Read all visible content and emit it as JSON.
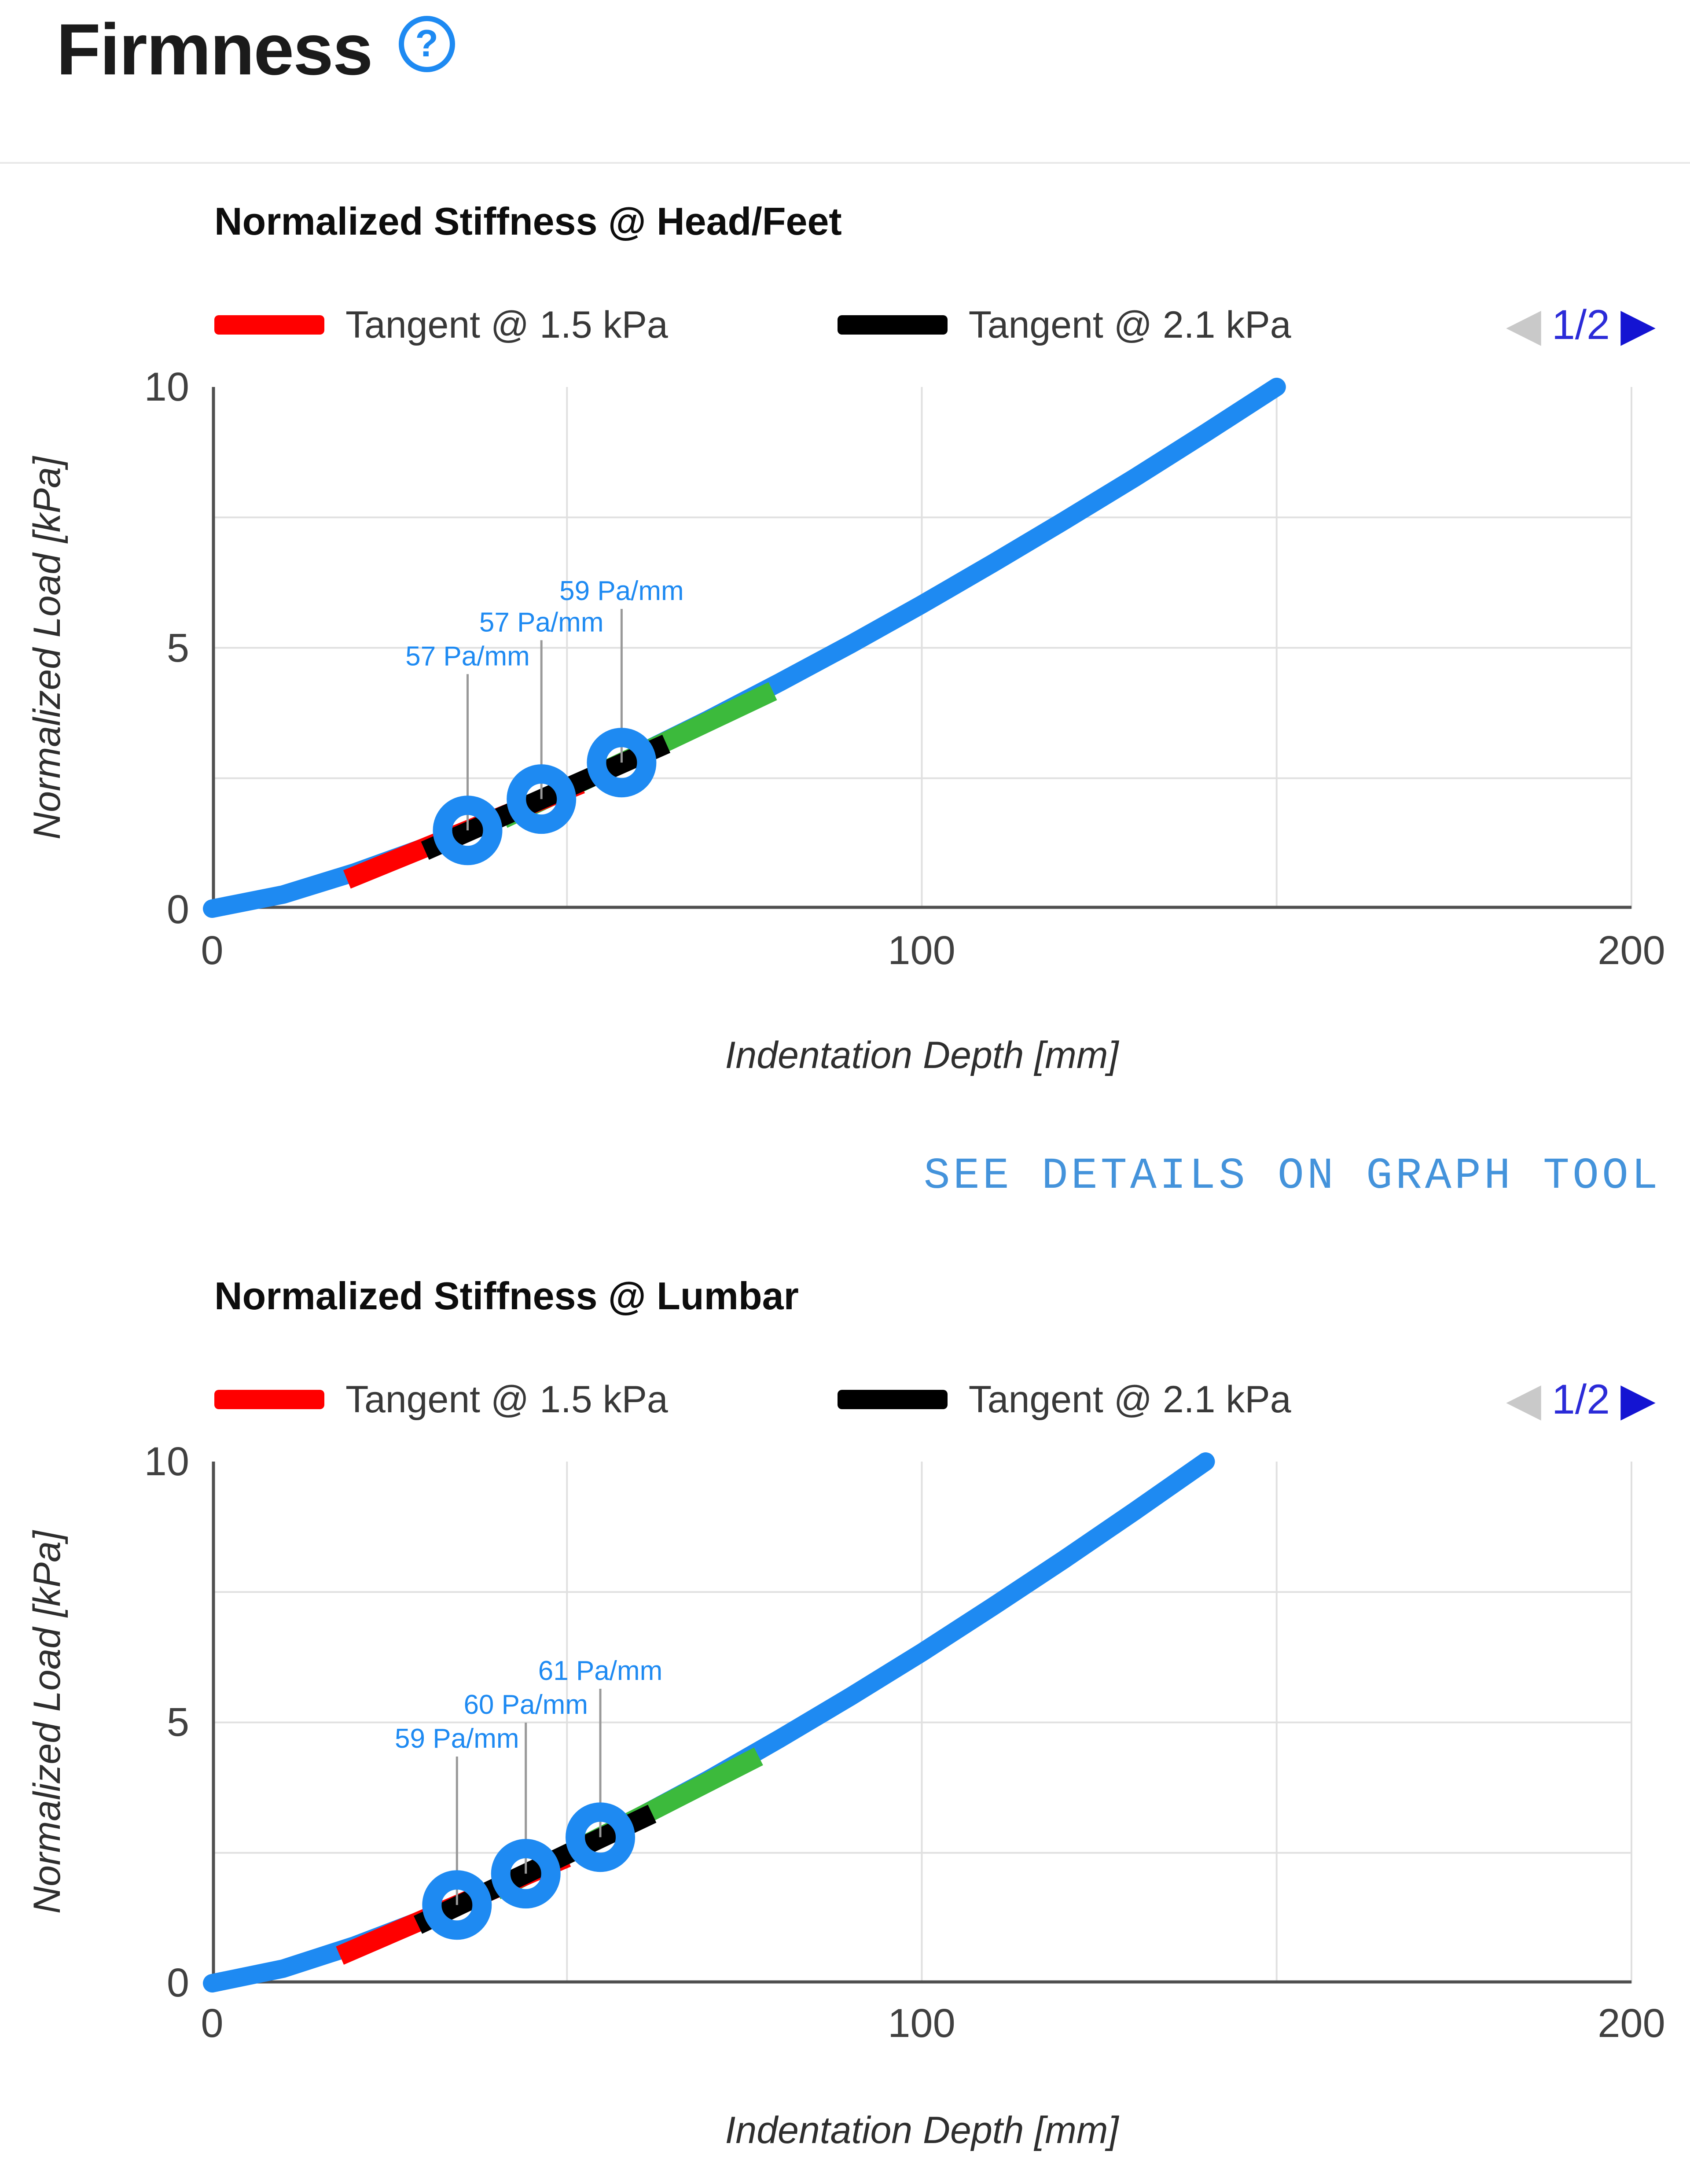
{
  "header": {
    "title": "Firmness",
    "help_icon_glyph": "?"
  },
  "see_details_link": {
    "label": "SEE DETAILS ON GRAPH TOOL"
  },
  "pager": {
    "label": "1/2",
    "prev_icon": "◀",
    "next_icon": "▶",
    "prev_enabled": false,
    "next_enabled": true,
    "prev_color": "#c9c9c9",
    "next_color": "#1414d2",
    "label_color": "#2b2bd8"
  },
  "colors": {
    "curve_blue": "#1e8af2",
    "annotation_blue": "#1e8af2",
    "tangent_red": "#ff0000",
    "tangent_black": "#000000",
    "tangent_green": "#3cba3c",
    "grid": "#e0e0e0",
    "axis": "#4f4f4f",
    "callout_gray": "#999999",
    "link_blue": "#4493db"
  },
  "chart_data": [
    {
      "type": "line",
      "title": "Normalized Stiffness @ Head/Feet",
      "xlabel": "Indentation Depth [mm]",
      "ylabel": "Normalized Load [kPa]",
      "xlim": [
        0,
        200
      ],
      "ylim": [
        0,
        10
      ],
      "xticks": [
        0,
        100,
        200
      ],
      "yticks": [
        0,
        5,
        10
      ],
      "x_gridlines": [
        50,
        100,
        150,
        200
      ],
      "y_gridlines": [
        2.5,
        5,
        7.5
      ],
      "legend": [
        {
          "label": "Tangent @ 1.5 kPa",
          "color": "#ff0000"
        },
        {
          "label": "Tangent @ 2.1 kPa",
          "color": "#000000"
        }
      ],
      "legend_page": "1/2",
      "curve": {
        "name": "normalized-load-vs-indentation-depth",
        "color": "#1e8af2",
        "points": [
          [
            0,
            0
          ],
          [
            10,
            0.27
          ],
          [
            20,
            0.69
          ],
          [
            30,
            1.18
          ],
          [
            36,
            1.5
          ],
          [
            40,
            1.73
          ],
          [
            46.4,
            2.1
          ],
          [
            50,
            2.32
          ],
          [
            57.7,
            2.8
          ],
          [
            60,
            2.96
          ],
          [
            70,
            3.63
          ],
          [
            80,
            4.34
          ],
          [
            90,
            5.07
          ],
          [
            100,
            5.83
          ],
          [
            110,
            6.62
          ],
          [
            120,
            7.43
          ],
          [
            130,
            8.26
          ],
          [
            140,
            9.12
          ],
          [
            150,
            10
          ]
        ]
      },
      "tangents": [
        {
          "name": "tangent-green",
          "color": "#3cba3c",
          "x1": 41,
          "y1": 1.72,
          "x2": 79,
          "y2": 4.17
        },
        {
          "name": "tangent-red",
          "label": "Tangent @ 1.5 kPa",
          "color": "#ff0000",
          "x1": 19,
          "y1": 0.56,
          "x2": 52,
          "y2": 2.39
        },
        {
          "name": "tangent-black",
          "label": "Tangent @ 2.1 kPa",
          "color": "#000000",
          "x1": 30,
          "y1": 1.11,
          "x2": 64,
          "y2": 3.16
        }
      ],
      "markers": [
        {
          "x": 36,
          "y": 1.5,
          "stiffness_label": "57 Pa/mm",
          "label_y": 4.85
        },
        {
          "x": 46.4,
          "y": 2.1,
          "stiffness_label": "57 Pa/mm",
          "label_y": 5.5
        },
        {
          "x": 57.7,
          "y": 2.8,
          "stiffness_label": "59 Pa/mm",
          "label_y": 6.1
        }
      ]
    },
    {
      "type": "line",
      "title": "Normalized Stiffness @ Lumbar",
      "xlabel": "Indentation Depth [mm]",
      "ylabel": "Normalized Load [kPa]",
      "xlim": [
        0,
        200
      ],
      "ylim": [
        0,
        10
      ],
      "xticks": [
        0,
        100,
        200
      ],
      "yticks": [
        0,
        5,
        10
      ],
      "x_gridlines": [
        50,
        100,
        150,
        200
      ],
      "y_gridlines": [
        2.5,
        5,
        7.5
      ],
      "legend": [
        {
          "label": "Tangent @ 1.5 kPa",
          "color": "#ff0000"
        },
        {
          "label": "Tangent @ 2.1 kPa",
          "color": "#000000"
        }
      ],
      "legend_page": "1/2",
      "curve": {
        "name": "normalized-load-vs-indentation-depth",
        "color": "#1e8af2",
        "points": [
          [
            0,
            0
          ],
          [
            10,
            0.28
          ],
          [
            20,
            0.72
          ],
          [
            30,
            1.24
          ],
          [
            34.5,
            1.5
          ],
          [
            40,
            1.83
          ],
          [
            44.2,
            2.1
          ],
          [
            50,
            2.48
          ],
          [
            54.7,
            2.8
          ],
          [
            60,
            3.18
          ],
          [
            70,
            3.91
          ],
          [
            80,
            4.69
          ],
          [
            90,
            5.5
          ],
          [
            100,
            6.34
          ],
          [
            110,
            7.22
          ],
          [
            120,
            8.12
          ],
          [
            130,
            9.05
          ],
          [
            140,
            10
          ]
        ]
      },
      "tangents": [
        {
          "name": "tangent-green",
          "color": "#3cba3c",
          "x1": 40,
          "y1": 1.78,
          "x2": 77,
          "y2": 4.35
        },
        {
          "name": "tangent-red",
          "label": "Tangent @ 1.5 kPa",
          "color": "#ff0000",
          "x1": 18,
          "y1": 0.53,
          "x2": 50,
          "y2": 2.41
        },
        {
          "name": "tangent-black",
          "label": "Tangent @ 2.1 kPa",
          "color": "#000000",
          "x1": 29,
          "y1": 1.12,
          "x2": 62,
          "y2": 3.25
        }
      ],
      "markers": [
        {
          "x": 34.5,
          "y": 1.5,
          "stiffness_label": "59 Pa/mm",
          "label_y": 4.7
        },
        {
          "x": 44.2,
          "y": 2.1,
          "stiffness_label": "60 Pa/mm",
          "label_y": 5.35
        },
        {
          "x": 54.7,
          "y": 2.8,
          "stiffness_label": "61 Pa/mm",
          "label_y": 6.0
        }
      ]
    }
  ]
}
